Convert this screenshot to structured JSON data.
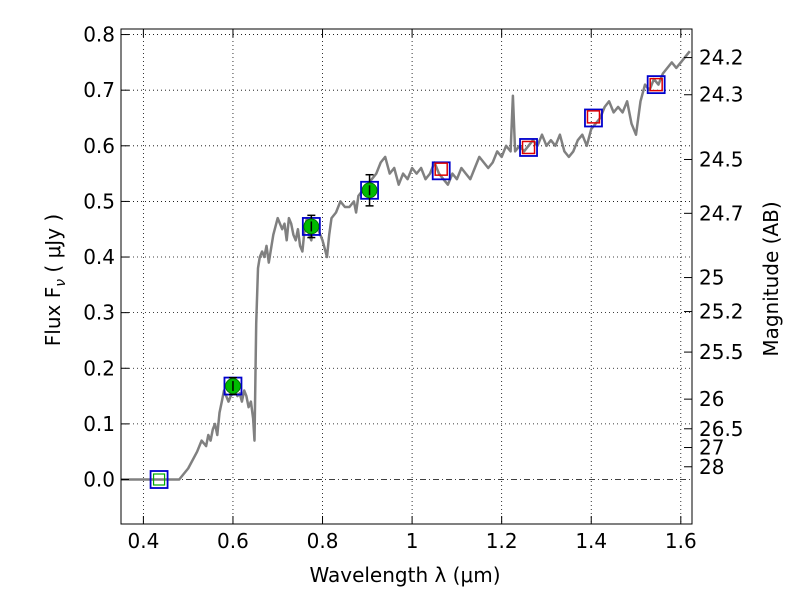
{
  "chart_data": {
    "type": "line",
    "xlabel": "Wavelength  λ (μm)",
    "ylabel": "Flux  F",
    "ylabel_sub": "ν",
    "ylabel_unit": "  ( μJy )",
    "y2label": "Magnitude (AB)",
    "xlim": [
      0.35,
      1.625
    ],
    "ylim": [
      -0.08,
      0.81
    ],
    "grid": true,
    "x_ticks": [
      0.4,
      0.6,
      0.8,
      1.0,
      1.2,
      1.4,
      1.6
    ],
    "x_tick_labels": [
      "0.4",
      "0.6",
      "0.8",
      "1",
      "1.2",
      "1.4",
      "1.6"
    ],
    "y_ticks": [
      0.0,
      0.1,
      0.2,
      0.3,
      0.4,
      0.5,
      0.6,
      0.7,
      0.8
    ],
    "y_tick_labels": [
      "0.0",
      "0.1",
      "0.2",
      "0.3",
      "0.4",
      "0.5",
      "0.6",
      "0.7",
      "0.8"
    ],
    "y2_ticks": [
      {
        "label": "24.2",
        "flux": 0.7586
      },
      {
        "label": "24.3",
        "flux": 0.6918
      },
      {
        "label": "24.5",
        "flux": 0.5754
      },
      {
        "label": "24.7",
        "flux": 0.4786
      },
      {
        "label": "25",
        "flux": 0.3631
      },
      {
        "label": "25.2",
        "flux": 0.302
      },
      {
        "label": "25.5",
        "flux": 0.2291
      },
      {
        "label": "26",
        "flux": 0.1445
      },
      {
        "label": "26.5",
        "flux": 0.0912
      },
      {
        "label": "27",
        "flux": 0.0575
      },
      {
        "label": "28",
        "flux": 0.0229
      }
    ],
    "series": [
      {
        "kind": "spectrum",
        "color": "#808080",
        "x": [
          0.35,
          0.48,
          0.5,
          0.52,
          0.53,
          0.54,
          0.545,
          0.55,
          0.555,
          0.56,
          0.565,
          0.57,
          0.575,
          0.58,
          0.585,
          0.59,
          0.595,
          0.6,
          0.605,
          0.61,
          0.615,
          0.62,
          0.625,
          0.63,
          0.635,
          0.64,
          0.645,
          0.648,
          0.652,
          0.656,
          0.66,
          0.665,
          0.67,
          0.675,
          0.68,
          0.69,
          0.7,
          0.71,
          0.715,
          0.72,
          0.725,
          0.73,
          0.735,
          0.74,
          0.745,
          0.75,
          0.755,
          0.76,
          0.765,
          0.77,
          0.775,
          0.78,
          0.79,
          0.8,
          0.81,
          0.815,
          0.82,
          0.83,
          0.84,
          0.85,
          0.86,
          0.87,
          0.875,
          0.88,
          0.89,
          0.9,
          0.91,
          0.92,
          0.93,
          0.94,
          0.95,
          0.96,
          0.97,
          0.98,
          0.99,
          1.0,
          1.01,
          1.02,
          1.03,
          1.04,
          1.05,
          1.06,
          1.07,
          1.08,
          1.09,
          1.1,
          1.11,
          1.12,
          1.13,
          1.14,
          1.15,
          1.16,
          1.17,
          1.18,
          1.19,
          1.2,
          1.21,
          1.22,
          1.225,
          1.23,
          1.24,
          1.25,
          1.26,
          1.27,
          1.28,
          1.29,
          1.3,
          1.31,
          1.32,
          1.33,
          1.34,
          1.35,
          1.36,
          1.37,
          1.38,
          1.39,
          1.4,
          1.41,
          1.42,
          1.43,
          1.44,
          1.45,
          1.46,
          1.47,
          1.48,
          1.49,
          1.5,
          1.51,
          1.52,
          1.53,
          1.54,
          1.55,
          1.56,
          1.57,
          1.58,
          1.59,
          1.6,
          1.61,
          1.62
        ],
        "y": [
          0.0,
          0.0,
          0.02,
          0.05,
          0.07,
          0.06,
          0.08,
          0.07,
          0.09,
          0.1,
          0.08,
          0.12,
          0.14,
          0.16,
          0.15,
          0.14,
          0.15,
          0.155,
          0.16,
          0.15,
          0.155,
          0.14,
          0.16,
          0.15,
          0.13,
          0.14,
          0.11,
          0.07,
          0.28,
          0.38,
          0.4,
          0.41,
          0.4,
          0.42,
          0.39,
          0.44,
          0.47,
          0.45,
          0.46,
          0.43,
          0.47,
          0.46,
          0.44,
          0.43,
          0.45,
          0.42,
          0.41,
          0.45,
          0.47,
          0.44,
          0.43,
          0.46,
          0.45,
          0.43,
          0.4,
          0.44,
          0.47,
          0.48,
          0.5,
          0.49,
          0.49,
          0.5,
          0.48,
          0.51,
          0.52,
          0.53,
          0.54,
          0.55,
          0.57,
          0.58,
          0.55,
          0.56,
          0.53,
          0.55,
          0.54,
          0.56,
          0.55,
          0.56,
          0.54,
          0.55,
          0.57,
          0.55,
          0.54,
          0.53,
          0.55,
          0.54,
          0.56,
          0.55,
          0.54,
          0.56,
          0.58,
          0.57,
          0.56,
          0.57,
          0.59,
          0.58,
          0.6,
          0.59,
          0.69,
          0.59,
          0.6,
          0.59,
          0.6,
          0.61,
          0.6,
          0.62,
          0.6,
          0.61,
          0.6,
          0.62,
          0.59,
          0.58,
          0.59,
          0.61,
          0.62,
          0.6,
          0.63,
          0.64,
          0.65,
          0.67,
          0.68,
          0.66,
          0.67,
          0.66,
          0.68,
          0.64,
          0.62,
          0.68,
          0.71,
          0.7,
          0.72,
          0.71,
          0.73,
          0.74,
          0.75,
          0.74,
          0.75,
          0.76,
          0.77
        ]
      },
      {
        "kind": "photometry",
        "x": [
          0.6,
          0.775,
          0.905
        ],
        "y": [
          0.168,
          0.455,
          0.52
        ],
        "err": [
          0.015,
          0.02,
          0.028
        ],
        "color": "#00bb00"
      },
      {
        "kind": "model-box",
        "x": [
          0.435,
          0.6,
          0.775,
          0.905,
          1.065,
          1.26,
          1.405,
          1.545
        ],
        "y": [
          0.0,
          0.168,
          0.455,
          0.52,
          0.555,
          0.597,
          0.65,
          0.71
        ],
        "color": "#0000cc"
      },
      {
        "kind": "upper-box",
        "x": [
          1.065,
          1.26,
          1.405,
          1.545
        ],
        "y": [
          0.558,
          0.597,
          0.652,
          0.71
        ],
        "color": "#dd0000"
      }
    ]
  }
}
